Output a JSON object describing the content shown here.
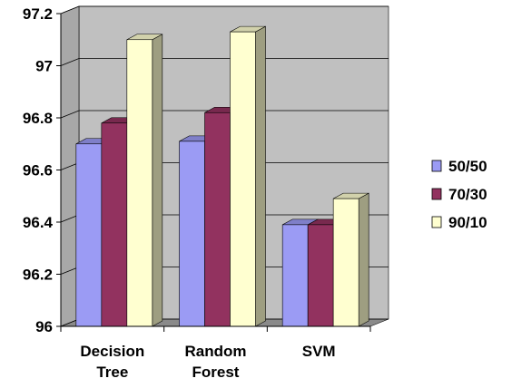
{
  "chart_data": {
    "type": "bar",
    "categories": [
      [
        "Decision",
        "Tree"
      ],
      [
        "Random",
        "Forest"
      ],
      [
        "SVM"
      ]
    ],
    "series": [
      {
        "name": "50/50",
        "values": [
          96.7,
          96.71,
          96.39
        ],
        "color": "#9b9bf4"
      },
      {
        "name": "70/30",
        "values": [
          96.78,
          96.82,
          96.39
        ],
        "color": "#92325f"
      },
      {
        "name": "90/10",
        "values": [
          97.1,
          97.13,
          96.49
        ],
        "color": "#ffffd0"
      }
    ],
    "ylim": [
      96,
      97.2
    ],
    "yticks": [
      "96",
      "96.2",
      "96.4",
      "96.6",
      "96.8",
      "97",
      "97.2"
    ],
    "grid": true,
    "three_d": true,
    "legend_position": "right",
    "colors": {
      "plot_back": "#c0c0c0",
      "plot_side": "#a8a8a8",
      "floor": "#8a8a8a",
      "grid": "#000000"
    }
  }
}
